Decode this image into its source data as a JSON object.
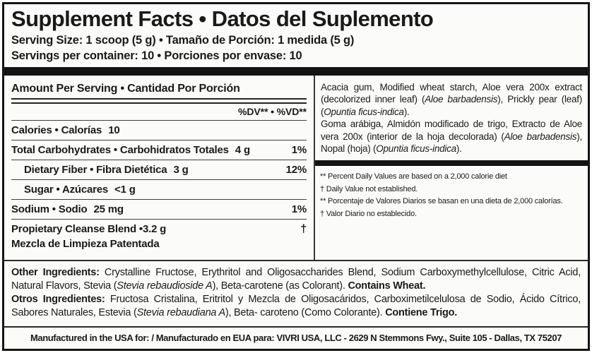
{
  "colors": {
    "bar": "#141414",
    "text": "#1a1a1a",
    "background": "#fbfbf9"
  },
  "header": {
    "title": "Supplement Facts • Datos del Suplemento",
    "serving_size": "Serving Size: 1 scoop (5 g) • Tamaño de Porción: 1 medida (5 g)",
    "servings_per_container": "Servings per container: 10 • Porciones por envase: 10"
  },
  "facts": {
    "header": "Amount Per Serving • Cantidad Por Porción",
    "dv_header": "%DV** • %VD**",
    "rows": [
      {
        "label": "Calories • Calorías",
        "amount": "10",
        "dv": ""
      },
      {
        "label": "Total Carbohydrates • Carbohidratos Totales",
        "amount": "4 g",
        "dv": "1%"
      },
      {
        "label": "Dietary Fiber • Fibra Dietética",
        "amount": "3 g",
        "dv": "12%"
      },
      {
        "label": "Sugar • Azúcares",
        "amount": "<1 g",
        "dv": ""
      },
      {
        "label": "Sodium • Sodio",
        "amount": "25 mg",
        "dv": "1%"
      },
      {
        "label": "Propietary Cleanse Blend •",
        "amount": "3.2 g",
        "dv": "†",
        "sublabel": "Mezcla de Limpieza Patentada"
      }
    ]
  },
  "ingredients_en": [
    {
      "t": "Acacia gum, Modified wheat starch, Aloe vera 200x extract (decolorized inner leaf) ("
    },
    {
      "t": "Aloe barbadensis",
      "i": true
    },
    {
      "t": "), Prickly pear (leaf) ("
    },
    {
      "t": "Opuntia ficus-indica",
      "i": true
    },
    {
      "t": ")."
    }
  ],
  "ingredients_es": [
    {
      "t": "Goma arábiga, Almidón modificado de trigo, Extracto de Aloe vera 200x (interior de la hoja decolorada) ("
    },
    {
      "t": "Aloe barbadensis",
      "i": true
    },
    {
      "t": "), Nopal (hoja) ("
    },
    {
      "t": "Opuntia ficus-indica",
      "i": true
    },
    {
      "t": ")."
    }
  ],
  "footnotes": [
    "** Percent Daily Values are based on a 2,000 calorie diet",
    "† Daily Value not established.",
    "** Porcentaje de Valores Diarios se basan en una dieta de 2,000 calorías.",
    "† Valor Diario no establecido."
  ],
  "other_ingredients_en": [
    {
      "t": "Other Ingredients: ",
      "b": true
    },
    {
      "t": "Crystalline Fructose, Erythritol and Oligosaccharides Blend, Sodium Carboxymethylcellulose, Citric Acid, Natural Flavors, Stevia ("
    },
    {
      "t": "Stevia rebaudioside A",
      "i": true
    },
    {
      "t": "), Beta-carotene (as Colorant). "
    },
    {
      "t": "Contains Wheat.",
      "b": true
    }
  ],
  "other_ingredients_es": [
    {
      "t": "Otros Ingredientes: ",
      "b": true
    },
    {
      "t": "Fructosa Cristalina, Eritritol y Mezcla de Oligosacáridos, Carboximetilcelulosa de Sodio, Ácido Cítrico, Sabores Naturales, Estevia ("
    },
    {
      "t": "Stevia rebaudiana A",
      "i": true
    },
    {
      "t": "), Beta- caroteno (Como Colorante). "
    },
    {
      "t": "Contiene Trigo.",
      "b": true
    }
  ],
  "manufactured": "Manufactured in the USA for: / Manufacturado en EUA para: VIVRI USA, LLC - 2629 N Stemmons Fwy., Suite 105 - Dallas, TX 75207"
}
